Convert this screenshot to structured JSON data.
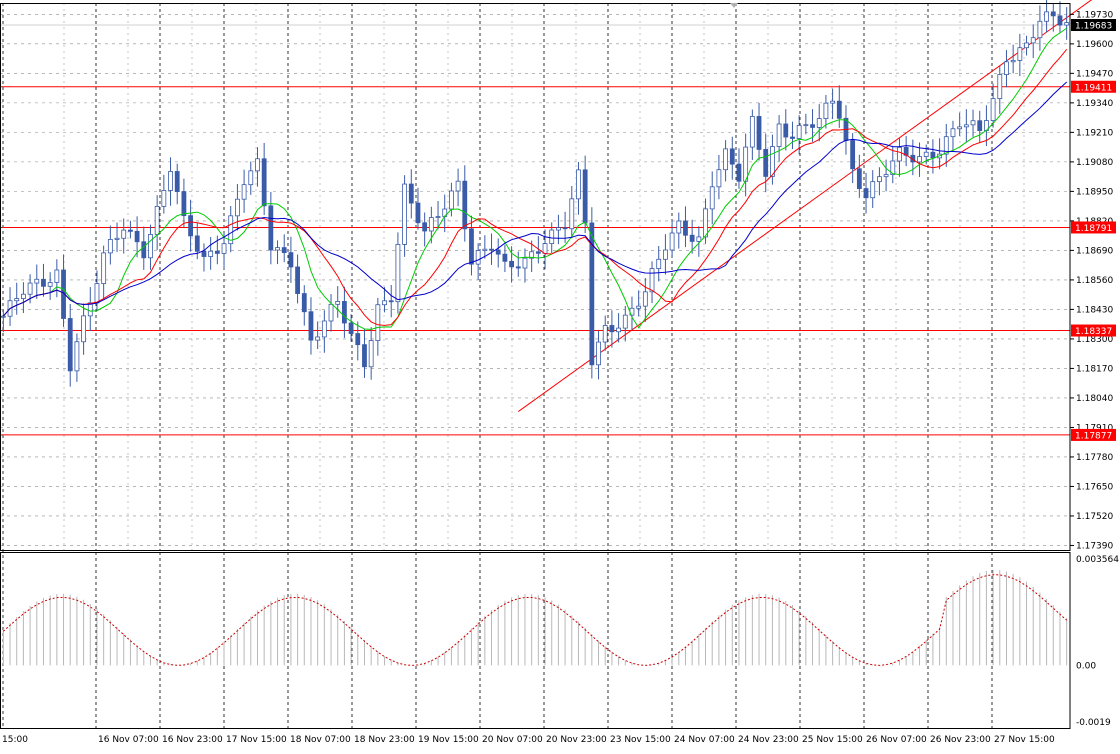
{
  "chart_data": {
    "type": "candlestick",
    "main_panel": {
      "y_ticks": [
        "1.19730",
        "1.19600",
        "1.19470",
        "1.19340",
        "1.19210",
        "1.19080",
        "1.18950",
        "1.18820",
        "1.18690",
        "1.18560",
        "1.18430",
        "1.18300",
        "1.18170",
        "1.18040",
        "1.17910",
        "1.17780",
        "1.17650",
        "1.17520",
        "1.17390"
      ],
      "ylim": [
        1.1737,
        1.1978
      ],
      "current_price": "1.19683",
      "horizontal_levels": [
        {
          "label": "1.19411",
          "value": 1.19411
        },
        {
          "label": "1.18791",
          "value": 1.18791
        },
        {
          "label": "1.18337",
          "value": 1.18337
        },
        {
          "label": "1.17877",
          "value": 1.17877
        }
      ],
      "trendlines": [
        {
          "from": [
            77,
            1.1798
          ],
          "to": [
            163,
            1.198
          ]
        }
      ],
      "x_labels": [
        "15:00",
        "16 Nov 07:00",
        "16 Nov 23:00",
        "17 Nov 15:00",
        "18 Nov 07:00",
        "18 Nov 23:00",
        "19 Nov 15:00",
        "20 Nov 07:00",
        "20 Nov 23:00",
        "23 Nov 15:00",
        "24 Nov 07:00",
        "24 Nov 23:00",
        "25 Nov 15:00",
        "26 Nov 07:00",
        "26 Nov 23:00",
        "27 Nov 15:00"
      ],
      "bars_total": 160,
      "price_anchors": [
        [
          0,
          1.184
        ],
        [
          3,
          1.185
        ],
        [
          6,
          1.1855
        ],
        [
          8,
          1.186
        ],
        [
          10,
          1.182
        ],
        [
          11,
          1.183
        ],
        [
          13,
          1.1845
        ],
        [
          15,
          1.1865
        ],
        [
          18,
          1.188
        ],
        [
          21,
          1.187
        ],
        [
          24,
          1.1895
        ],
        [
          25,
          1.1905
        ],
        [
          27,
          1.188
        ],
        [
          30,
          1.1865
        ],
        [
          33,
          1.1875
        ],
        [
          36,
          1.19
        ],
        [
          38,
          1.1905
        ],
        [
          40,
          1.187
        ],
        [
          43,
          1.1865
        ],
        [
          46,
          1.183
        ],
        [
          50,
          1.1845
        ],
        [
          52,
          1.183
        ],
        [
          54,
          1.182
        ],
        [
          56,
          1.1845
        ],
        [
          58,
          1.185
        ],
        [
          60,
          1.1895
        ],
        [
          63,
          1.1875
        ],
        [
          66,
          1.189
        ],
        [
          68,
          1.19
        ],
        [
          70,
          1.1865
        ],
        [
          73,
          1.187
        ],
        [
          75,
          1.186
        ],
        [
          78,
          1.1865
        ],
        [
          81,
          1.1875
        ],
        [
          84,
          1.188
        ],
        [
          86,
          1.19
        ],
        [
          87,
          1.188
        ],
        [
          88,
          1.182
        ],
        [
          90,
          1.1835
        ],
        [
          93,
          1.184
        ],
        [
          96,
          1.185
        ],
        [
          99,
          1.187
        ],
        [
          101,
          1.188
        ],
        [
          104,
          1.1875
        ],
        [
          106,
          1.19
        ],
        [
          108,
          1.191
        ],
        [
          110,
          1.19
        ],
        [
          112,
          1.1925
        ],
        [
          114,
          1.1905
        ],
        [
          116,
          1.1925
        ],
        [
          118,
          1.192
        ],
        [
          122,
          1.1925
        ],
        [
          124,
          1.1935
        ],
        [
          125,
          1.193
        ],
        [
          127,
          1.1905
        ],
        [
          129,
          1.1895
        ],
        [
          131,
          1.19
        ],
        [
          134,
          1.191
        ],
        [
          137,
          1.191
        ],
        [
          140,
          1.1915
        ],
        [
          143,
          1.1925
        ],
        [
          146,
          1.192
        ],
        [
          148,
          1.1935
        ],
        [
          150,
          1.1955
        ],
        [
          153,
          1.196
        ],
        [
          155,
          1.197
        ],
        [
          157,
          1.197
        ],
        [
          159,
          1.1968
        ]
      ],
      "moving_averages": [
        {
          "color": "#00cc00",
          "period": 8
        },
        {
          "color": "#ff0000",
          "period": 13
        },
        {
          "color": "#0000cc",
          "period": 21
        }
      ],
      "candle_color": "#3a5ba8"
    },
    "indicator_panel": {
      "y_ticks": [
        "0.003564",
        "0.00",
        "-0.0019"
      ],
      "ylim": [
        -0.0021,
        0.0038
      ]
    }
  },
  "colors": {
    "level": "#ff0000",
    "grid": "#8c8c8c",
    "price_tag": "#000000",
    "level_tag": "#ff0000"
  }
}
